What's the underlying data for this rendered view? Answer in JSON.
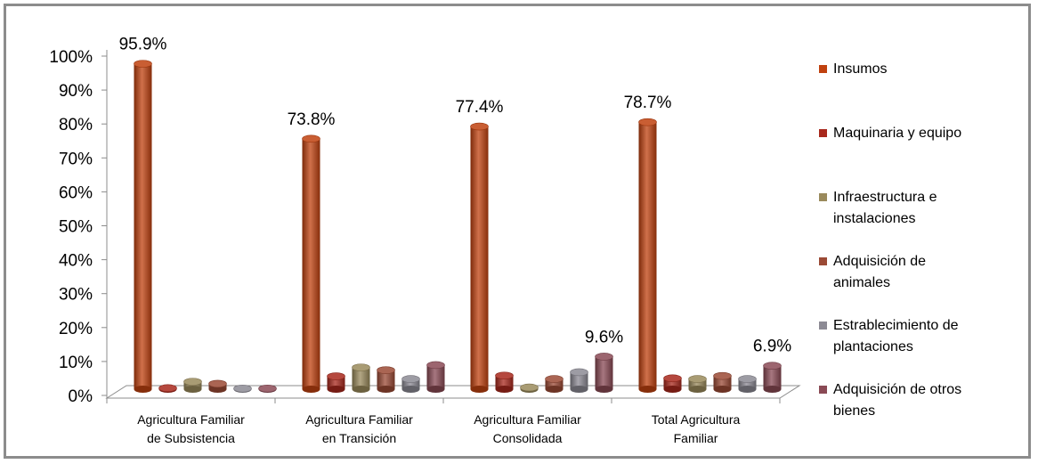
{
  "chart_data": {
    "type": "bar",
    "categories": [
      [
        "Agricultura Familiar",
        "de Subsistencia"
      ],
      [
        "Agricultura Familiar",
        "en Transición"
      ],
      [
        "Agricultura Familiar",
        "Consolidada"
      ],
      [
        "Total Agricultura",
        "Familiar"
      ]
    ],
    "yticks": [
      "0%",
      "10%",
      "20%",
      "30%",
      "40%",
      "50%",
      "60%",
      "70%",
      "80%",
      "90%",
      "100%"
    ],
    "ylim": [
      0,
      100
    ],
    "grid": false,
    "legend_position": "right",
    "series": [
      {
        "name": [
          "Insumos"
        ],
        "color": "#c0410f",
        "values": [
          95.9,
          73.8,
          77.4,
          78.7
        ]
      },
      {
        "name": [
          "Maquinaria y equipo"
        ],
        "color": "#a8281c",
        "values": [
          0.3,
          3.8,
          4.0,
          3.2
        ]
      },
      {
        "name": [
          "Infraestructura e",
          "instalaciones"
        ],
        "color": "#9a8a5c",
        "values": [
          2.2,
          6.4,
          0.5,
          3.0
        ]
      },
      {
        "name": [
          "Adquisición de",
          "animales"
        ],
        "color": "#9b4a35",
        "values": [
          1.6,
          5.6,
          3.0,
          3.9
        ]
      },
      {
        "name": [
          "Estrablecimiento de",
          "plantaciones"
        ],
        "color": "#8c8a94",
        "values": [
          0.2,
          3.0,
          5.0,
          3.0
        ]
      },
      {
        "name": [
          "Adquisición de otros",
          "bienes"
        ],
        "color": "#8a4a55",
        "values": [
          0.2,
          7.1,
          9.6,
          6.9
        ]
      }
    ],
    "data_labels": [
      {
        "series": 0,
        "category": 0,
        "text": "95.9%"
      },
      {
        "series": 0,
        "category": 1,
        "text": "73.8%"
      },
      {
        "series": 0,
        "category": 2,
        "text": "77.4%"
      },
      {
        "series": 0,
        "category": 3,
        "text": "78.7%"
      },
      {
        "series": 5,
        "category": 2,
        "text": "9.6%"
      },
      {
        "series": 5,
        "category": 3,
        "text": "6.9%"
      }
    ]
  }
}
